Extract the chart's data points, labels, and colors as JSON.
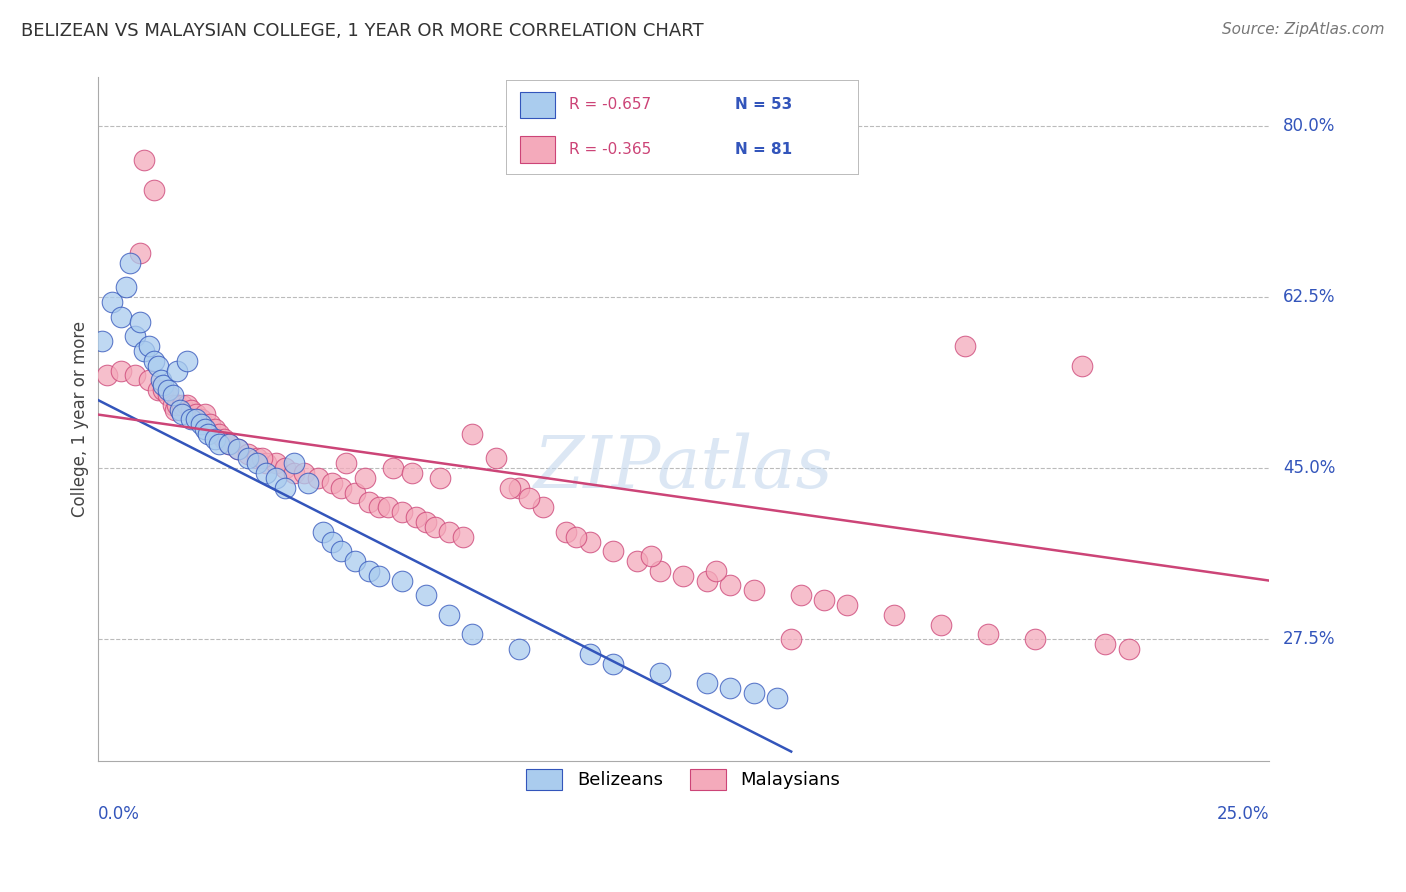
{
  "title": "BELIZEAN VS MALAYSIAN COLLEGE, 1 YEAR OR MORE CORRELATION CHART",
  "source": "Source: ZipAtlas.com",
  "ylabel": "College, 1 year or more",
  "watermark": "ZIPatlas",
  "legend_blue_r": "R = -0.657",
  "legend_blue_n": "N = 53",
  "legend_pink_r": "R = -0.365",
  "legend_pink_n": "N = 81",
  "blue_color": "#aaccee",
  "pink_color": "#f4aabb",
  "blue_line_color": "#3355bb",
  "pink_line_color": "#cc4477",
  "r_color": "#cc4477",
  "n_color": "#3355bb",
  "blue_label": "Belizeans",
  "pink_label": "Malaysians",
  "xmin": 0.0,
  "xmax": 25.0,
  "ymin": 15.0,
  "ymax": 85.0,
  "yticks": [
    27.5,
    45.0,
    62.5,
    80.0
  ],
  "blue_line_x": [
    0.0,
    14.8
  ],
  "blue_line_y": [
    52.0,
    16.0
  ],
  "pink_line_x": [
    0.0,
    25.0
  ],
  "pink_line_y": [
    50.5,
    33.5
  ],
  "blue_x": [
    0.1,
    0.3,
    0.5,
    0.6,
    0.7,
    0.8,
    0.9,
    1.0,
    1.1,
    1.2,
    1.3,
    1.35,
    1.4,
    1.5,
    1.6,
    1.7,
    1.75,
    1.8,
    1.9,
    2.0,
    2.1,
    2.2,
    2.3,
    2.35,
    2.5,
    2.6,
    2.8,
    3.0,
    3.2,
    3.4,
    3.6,
    3.8,
    4.0,
    4.2,
    4.5,
    4.8,
    5.0,
    5.2,
    5.5,
    5.8,
    6.0,
    6.5,
    7.0,
    7.5,
    8.0,
    9.0,
    10.5,
    11.0,
    12.0,
    13.0,
    13.5,
    14.0,
    14.5
  ],
  "blue_y": [
    58.0,
    62.0,
    60.5,
    63.5,
    66.0,
    58.5,
    60.0,
    57.0,
    57.5,
    56.0,
    55.5,
    54.0,
    53.5,
    53.0,
    52.5,
    55.0,
    51.0,
    50.5,
    56.0,
    50.0,
    50.0,
    49.5,
    49.0,
    48.5,
    48.0,
    47.5,
    47.5,
    47.0,
    46.0,
    45.5,
    44.5,
    44.0,
    43.0,
    45.5,
    43.5,
    38.5,
    37.5,
    36.5,
    35.5,
    34.5,
    34.0,
    33.5,
    32.0,
    30.0,
    28.0,
    26.5,
    26.0,
    25.0,
    24.0,
    23.0,
    22.5,
    22.0,
    21.5
  ],
  "pink_x": [
    0.2,
    0.5,
    0.8,
    0.9,
    1.0,
    1.1,
    1.2,
    1.3,
    1.4,
    1.5,
    1.6,
    1.65,
    1.7,
    1.8,
    1.9,
    2.0,
    2.1,
    2.2,
    2.3,
    2.4,
    2.5,
    2.6,
    2.7,
    2.8,
    3.0,
    3.2,
    3.4,
    3.6,
    3.8,
    4.0,
    4.2,
    4.4,
    4.7,
    5.0,
    5.2,
    5.5,
    5.7,
    5.8,
    6.0,
    6.2,
    6.5,
    6.8,
    7.0,
    7.2,
    7.5,
    7.8,
    8.0,
    8.5,
    9.0,
    9.5,
    10.0,
    10.5,
    11.0,
    11.5,
    12.0,
    12.5,
    13.0,
    13.5,
    14.0,
    15.0,
    15.5,
    16.0,
    17.0,
    18.0,
    19.0,
    20.0,
    21.5,
    22.0,
    3.5,
    5.3,
    6.3,
    6.7,
    7.3,
    8.8,
    9.2,
    10.2,
    11.8,
    13.2,
    14.8,
    21.0,
    18.5
  ],
  "pink_y": [
    54.5,
    55.0,
    54.5,
    67.0,
    76.5,
    54.0,
    73.5,
    53.0,
    53.0,
    52.5,
    51.5,
    51.0,
    51.5,
    51.5,
    51.5,
    51.0,
    50.5,
    50.0,
    50.5,
    49.5,
    49.0,
    48.5,
    48.0,
    47.5,
    47.0,
    46.5,
    46.0,
    45.5,
    45.5,
    45.0,
    44.5,
    44.5,
    44.0,
    43.5,
    43.0,
    42.5,
    44.0,
    41.5,
    41.0,
    41.0,
    40.5,
    40.0,
    39.5,
    39.0,
    38.5,
    38.0,
    48.5,
    46.0,
    43.0,
    41.0,
    38.5,
    37.5,
    36.5,
    35.5,
    34.5,
    34.0,
    33.5,
    33.0,
    32.5,
    32.0,
    31.5,
    31.0,
    30.0,
    29.0,
    28.0,
    27.5,
    27.0,
    26.5,
    46.0,
    45.5,
    45.0,
    44.5,
    44.0,
    43.0,
    42.0,
    38.0,
    36.0,
    34.5,
    27.5,
    55.5,
    57.5
  ]
}
